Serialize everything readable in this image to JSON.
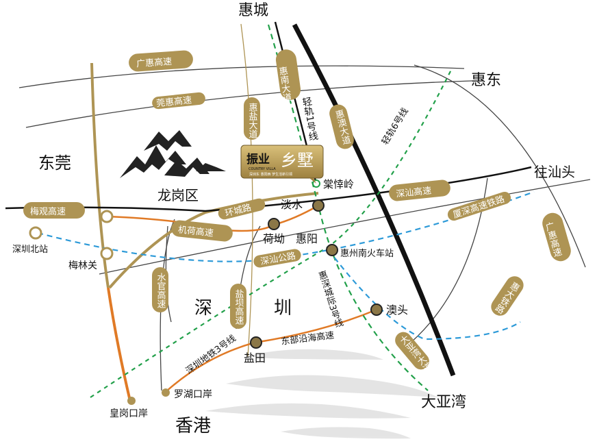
{
  "map": {
    "colors": {
      "gold": "#ae9454",
      "orange": "#e07a26",
      "black": "#111111",
      "green_dash": "#22a04a",
      "blue_dash": "#2d9ad8",
      "gray": "#444444"
    },
    "regions": {
      "huicheng": "惠城",
      "huidong": "惠东",
      "dongguan": "东莞",
      "longgang": "龙岗区",
      "shen": "深",
      "zhen": "圳",
      "hongkong": "香港",
      "dayawan": "大亚湾",
      "wangshantou": "往汕头"
    },
    "roads": {
      "guanghui_top": "广惠高速",
      "guanhui": "莞惠高速",
      "huiyan": "惠盐大道",
      "huinan": "惠南大道",
      "huiao": "惠澳大道",
      "light_rail": "轻轨1号线",
      "light_rail_6": "轻轨6号线",
      "shenshan": "深汕高速",
      "meiguan": "梅观高速",
      "huancheng": "环城路",
      "jihe": "机荷高速",
      "shenshan_road": "深汕公路",
      "shuiguan": "水官高速",
      "yanba": "盐坝高速",
      "huishen_intercity": "惠深城际3号线",
      "shenzhen_metro3": "深圳地铁3号线",
      "east_coastal": "东部沿海高速",
      "xiashen_rail": "厦深高速铁路",
      "guanghui_right": "广惠高速",
      "huida_rail": "惠大铁路",
      "dayawan_road": "大亚湾大道"
    },
    "places": {
      "tangweiling": "棠悻岭",
      "danshui": "淡水",
      "heao": "荷坳",
      "huiyang": "惠阳",
      "huizhou_south": "惠州南火车站",
      "aotou": "澳头",
      "yantian": "盐田",
      "luohu_port": "罗湖口岸",
      "huanggang_port": "皇岗口岸",
      "shenzhen_north": "深圳北站",
      "meilin": "梅林关"
    },
    "project": {
      "brand": "振业",
      "name": "乡墅",
      "english": "COUNTRY VILLA",
      "tagline": "深圳东 惠阳西 罗生活新引领"
    }
  }
}
